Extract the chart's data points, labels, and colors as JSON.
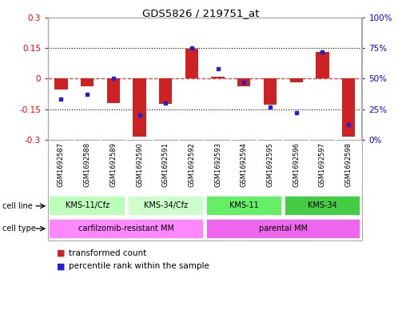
{
  "title": "GDS5826 / 219751_at",
  "samples": [
    "GSM1692587",
    "GSM1692588",
    "GSM1692589",
    "GSM1692590",
    "GSM1692591",
    "GSM1692592",
    "GSM1692593",
    "GSM1692594",
    "GSM1692595",
    "GSM1692596",
    "GSM1692597",
    "GSM1692598"
  ],
  "transformed_count": [
    -0.055,
    -0.04,
    -0.12,
    -0.285,
    -0.125,
    0.145,
    0.01,
    -0.04,
    -0.13,
    -0.02,
    0.13,
    -0.285
  ],
  "percentile_rank": [
    33,
    37,
    50,
    20,
    30,
    75,
    58,
    47,
    27,
    22,
    72,
    12
  ],
  "cell_line_groups": [
    {
      "label": "KMS-11/Cfz",
      "start": 0,
      "end": 3,
      "color": "#bbffbb"
    },
    {
      "label": "KMS-34/Cfz",
      "start": 3,
      "end": 6,
      "color": "#ccffcc"
    },
    {
      "label": "KMS-11",
      "start": 6,
      "end": 9,
      "color": "#66ee66"
    },
    {
      "label": "KMS-34",
      "start": 9,
      "end": 12,
      "color": "#44cc44"
    }
  ],
  "cell_type_groups": [
    {
      "label": "carfilzomib-resistant MM",
      "start": 0,
      "end": 6,
      "color": "#ff88ff"
    },
    {
      "label": "parental MM",
      "start": 6,
      "end": 12,
      "color": "#ee66ee"
    }
  ],
  "bar_color": "#cc2222",
  "dot_color": "#2222cc",
  "ylim_left": [
    -0.3,
    0.3
  ],
  "ylim_right": [
    0,
    100
  ],
  "yticks_left": [
    -0.3,
    -0.15,
    0,
    0.15,
    0.3
  ],
  "yticks_right": [
    0,
    25,
    50,
    75,
    100
  ],
  "ytick_labels_left": [
    "-0.3",
    "-0.15",
    "0",
    "0.15",
    "0.3"
  ],
  "ytick_labels_right": [
    "0%",
    "25%",
    "50%",
    "75%",
    "100%"
  ],
  "bar_width": 0.5,
  "plot_bg": "#ffffff",
  "fig_bg": "#ffffff",
  "sample_row_color": "#d4d4d4",
  "cell_line_border_color": "#ffffff",
  "outer_border_color": "#aaaaaa"
}
